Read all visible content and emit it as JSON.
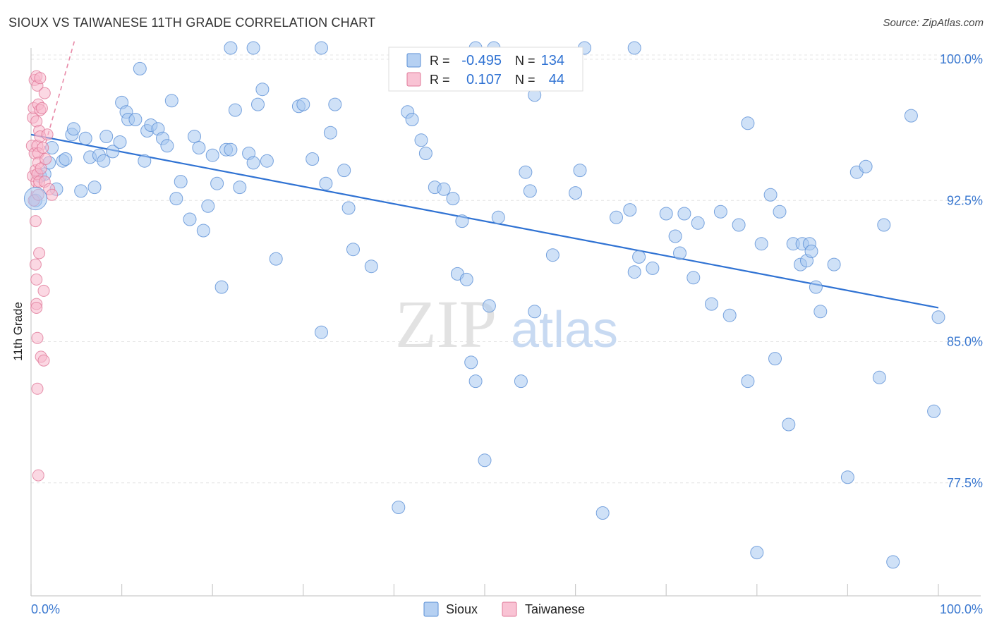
{
  "title": "SIOUX VS TAIWANESE 11TH GRADE CORRELATION CHART",
  "source": "Source: ZipAtlas.com",
  "watermark": {
    "zip": "ZIP",
    "atlas": "atlas"
  },
  "chart_data": {
    "type": "scatter",
    "title": "SIOUX VS TAIWANESE 11TH GRADE CORRELATION CHART",
    "xlabel": "",
    "ylabel": "11th Grade",
    "xlim": [
      0,
      100
    ],
    "ylim": [
      71.5,
      100.6
    ],
    "x_tick_labels": {
      "left": "0.0%",
      "right": "100.0%"
    },
    "y_ticks": [
      {
        "value": 100.0,
        "label": "100.0%"
      },
      {
        "value": 92.5,
        "label": "92.5%"
      },
      {
        "value": 85.0,
        "label": "85.0%"
      },
      {
        "value": 77.5,
        "label": "77.5%"
      }
    ],
    "grid": true,
    "legend_position": "top-center",
    "stats": [
      {
        "r_label": "R =",
        "r": "-0.495",
        "n_label": "N =",
        "n": "134"
      },
      {
        "r_label": "R =",
        "r": "0.107",
        "n_label": "N =",
        "n": "44"
      }
    ],
    "series": [
      {
        "name": "Sioux",
        "color": "#a8c8f0",
        "stroke": "#5a8fd6",
        "trend": {
          "x": [
            0,
            100
          ],
          "y": [
            96.0,
            86.8
          ],
          "color": "#2f72d3"
        },
        "points": [
          [
            0.5,
            92.5
          ],
          [
            1,
            93.8
          ],
          [
            1.5,
            93.9
          ],
          [
            2,
            94.5
          ],
          [
            2.3,
            95.3
          ],
          [
            2.8,
            93.1
          ],
          [
            3.5,
            94.6
          ],
          [
            3.8,
            94.7
          ],
          [
            4.5,
            96.0
          ],
          [
            4.7,
            96.3
          ],
          [
            5.5,
            93.0
          ],
          [
            6,
            95.8
          ],
          [
            6.5,
            94.8
          ],
          [
            7,
            93.2
          ],
          [
            7.5,
            94.9
          ],
          [
            8,
            94.6
          ],
          [
            8.3,
            95.9
          ],
          [
            9,
            95.1
          ],
          [
            9.8,
            95.6
          ],
          [
            10,
            97.7
          ],
          [
            10.5,
            97.2
          ],
          [
            10.7,
            96.8
          ],
          [
            11.5,
            96.8
          ],
          [
            12,
            99.5
          ],
          [
            12.5,
            94.6
          ],
          [
            12.8,
            96.2
          ],
          [
            13.2,
            96.5
          ],
          [
            14,
            96.3
          ],
          [
            14.5,
            95.8
          ],
          [
            15,
            95.4
          ],
          [
            15.5,
            97.8
          ],
          [
            16,
            92.6
          ],
          [
            16.5,
            93.5
          ],
          [
            17.5,
            91.5
          ],
          [
            18,
            95.9
          ],
          [
            18.5,
            95.3
          ],
          [
            19,
            90.9
          ],
          [
            19.5,
            92.2
          ],
          [
            20,
            94.9
          ],
          [
            20.5,
            93.4
          ],
          [
            21,
            87.9
          ],
          [
            21.5,
            95.2
          ],
          [
            22,
            95.2
          ],
          [
            22.5,
            97.3
          ],
          [
            23,
            93.2
          ],
          [
            24,
            95.0
          ],
          [
            24.5,
            94.5
          ],
          [
            25,
            97.6
          ],
          [
            25.5,
            98.4
          ],
          [
            26,
            94.6
          ],
          [
            22,
            100.7
          ],
          [
            24.5,
            100.7
          ],
          [
            32,
            100.7
          ],
          [
            49,
            100.7
          ],
          [
            51,
            100.7
          ],
          [
            61,
            100.7
          ],
          [
            66.5,
            100.7
          ],
          [
            27,
            89.4
          ],
          [
            29.5,
            97.5
          ],
          [
            30,
            97.6
          ],
          [
            31,
            94.7
          ],
          [
            32,
            85.5
          ],
          [
            32.5,
            93.4
          ],
          [
            33,
            96.1
          ],
          [
            33.5,
            97.6
          ],
          [
            34.5,
            94.1
          ],
          [
            35,
            92.1
          ],
          [
            35.5,
            89.9
          ],
          [
            37.5,
            89.0
          ],
          [
            40.5,
            76.2
          ],
          [
            41.5,
            97.2
          ],
          [
            42,
            96.8
          ],
          [
            43,
            95.7
          ],
          [
            43.5,
            95.0
          ],
          [
            44.5,
            93.2
          ],
          [
            45.5,
            93.1
          ],
          [
            46.5,
            92.6
          ],
          [
            47,
            88.6
          ],
          [
            47.5,
            91.4
          ],
          [
            48,
            88.3
          ],
          [
            48.5,
            83.9
          ],
          [
            49,
            82.9
          ],
          [
            50,
            78.7
          ],
          [
            50.5,
            86.9
          ],
          [
            51.5,
            91.6
          ],
          [
            54,
            82.9
          ],
          [
            54.5,
            94.0
          ],
          [
            55,
            93.0
          ],
          [
            55.5,
            86.6
          ],
          [
            55.5,
            98.1
          ],
          [
            57.5,
            89.6
          ],
          [
            60,
            92.9
          ],
          [
            60.5,
            94.1
          ],
          [
            63,
            75.9
          ],
          [
            64.5,
            91.6
          ],
          [
            66,
            92.0
          ],
          [
            66.5,
            88.7
          ],
          [
            67,
            89.5
          ],
          [
            68.5,
            88.9
          ],
          [
            70,
            91.8
          ],
          [
            71,
            90.6
          ],
          [
            71.5,
            89.7
          ],
          [
            72,
            91.8
          ],
          [
            73,
            88.4
          ],
          [
            73.5,
            91.3
          ],
          [
            75,
            87.0
          ],
          [
            76,
            91.9
          ],
          [
            77,
            86.4
          ],
          [
            78,
            91.2
          ],
          [
            79,
            96.6
          ],
          [
            79,
            82.9
          ],
          [
            80,
            73.8
          ],
          [
            80.5,
            90.2
          ],
          [
            81.5,
            92.8
          ],
          [
            82,
            84.1
          ],
          [
            82.5,
            91.9
          ],
          [
            83.5,
            80.6
          ],
          [
            84,
            90.2
          ],
          [
            84.8,
            89.1
          ],
          [
            85,
            90.2
          ],
          [
            85.5,
            89.3
          ],
          [
            85.8,
            90.2
          ],
          [
            86,
            89.8
          ],
          [
            86.5,
            87.9
          ],
          [
            87,
            86.6
          ],
          [
            88.5,
            89.1
          ],
          [
            90,
            77.8
          ],
          [
            91,
            94.0
          ],
          [
            92,
            94.3
          ],
          [
            93.5,
            83.1
          ],
          [
            94,
            91.2
          ],
          [
            95,
            73.3
          ],
          [
            97,
            97.0
          ],
          [
            99.5,
            81.3
          ],
          [
            100,
            86.3
          ]
        ]
      },
      {
        "name": "Taiwanese",
        "color": "#f8b8cc",
        "stroke": "#e07898",
        "trend": {
          "x": [
            0,
            4.8
          ],
          "y": [
            92.8,
            101.0
          ],
          "color": "#e88aa8",
          "dashed": true
        },
        "points": [
          [
            0.1,
            95.4
          ],
          [
            0.2,
            93.8
          ],
          [
            0.2,
            96.9
          ],
          [
            0.3,
            97.4
          ],
          [
            0.3,
            92.5
          ],
          [
            0.4,
            98.9
          ],
          [
            0.4,
            95.0
          ],
          [
            0.5,
            94.1
          ],
          [
            0.5,
            91.4
          ],
          [
            0.5,
            89.1
          ],
          [
            0.6,
            99.1
          ],
          [
            0.6,
            96.7
          ],
          [
            0.6,
            93.5
          ],
          [
            0.6,
            88.3
          ],
          [
            0.6,
            87.0
          ],
          [
            0.6,
            86.8
          ],
          [
            0.7,
            98.6
          ],
          [
            0.7,
            95.4
          ],
          [
            0.7,
            93.9
          ],
          [
            0.7,
            85.2
          ],
          [
            0.7,
            82.5
          ],
          [
            0.8,
            97.6
          ],
          [
            0.8,
            95.0
          ],
          [
            0.8,
            94.5
          ],
          [
            0.8,
            92.8
          ],
          [
            0.8,
            77.9
          ],
          [
            0.9,
            96.2
          ],
          [
            0.9,
            93.5
          ],
          [
            0.9,
            89.7
          ],
          [
            1.0,
            99.0
          ],
          [
            1.0,
            97.3
          ],
          [
            1.0,
            95.9
          ],
          [
            1.1,
            94.2
          ],
          [
            1.1,
            84.2
          ],
          [
            1.2,
            97.4
          ],
          [
            1.3,
            95.3
          ],
          [
            1.4,
            87.7
          ],
          [
            1.4,
            84.0
          ],
          [
            1.5,
            98.2
          ],
          [
            1.5,
            93.5
          ],
          [
            1.6,
            94.7
          ],
          [
            1.8,
            96.0
          ],
          [
            2.0,
            93.1
          ],
          [
            2.3,
            92.8
          ]
        ]
      }
    ]
  }
}
